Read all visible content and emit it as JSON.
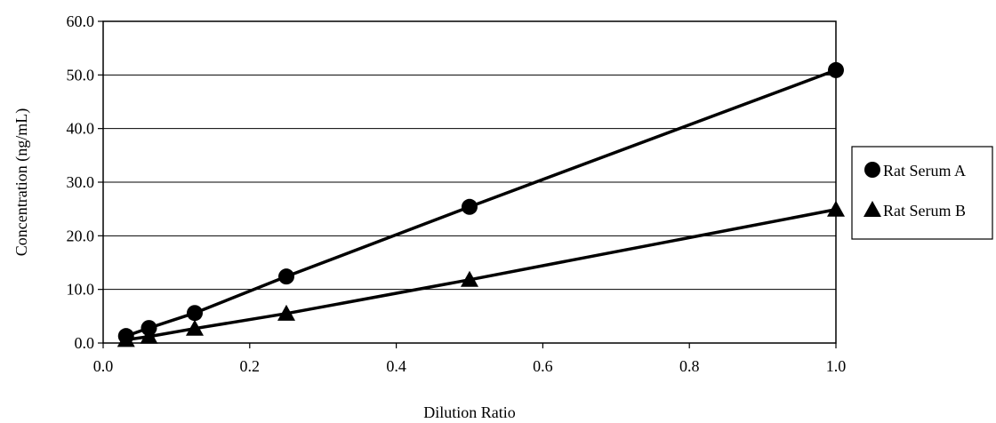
{
  "chart_data": {
    "type": "scatter",
    "title": "",
    "xlabel": "Dilution Ratio",
    "ylabel": "Concentration (ng/mL)",
    "xlim": [
      0.0,
      1.0
    ],
    "ylim": [
      0.0,
      60.0
    ],
    "x_ticks": [
      "0.0",
      "0.2",
      "0.4",
      "0.6",
      "0.8",
      "1.0"
    ],
    "y_ticks": [
      "0.0",
      "10.0",
      "20.0",
      "30.0",
      "40.0",
      "50.0",
      "60.0"
    ],
    "grid": "horizontal",
    "legend_position": "right",
    "series": [
      {
        "name": "Rat Serum A",
        "marker": "circle",
        "color": "#000000",
        "x": [
          0.03125,
          0.0625,
          0.125,
          0.25,
          0.5,
          1.0
        ],
        "y": [
          1.3,
          2.8,
          5.6,
          12.4,
          25.4,
          50.9
        ]
      },
      {
        "name": "Rat Serum B",
        "marker": "triangle",
        "color": "#000000",
        "x": [
          0.03125,
          0.0625,
          0.125,
          0.25,
          0.5,
          1.0
        ],
        "y": [
          0.6,
          1.2,
          2.7,
          5.5,
          11.8,
          24.9
        ]
      }
    ]
  }
}
